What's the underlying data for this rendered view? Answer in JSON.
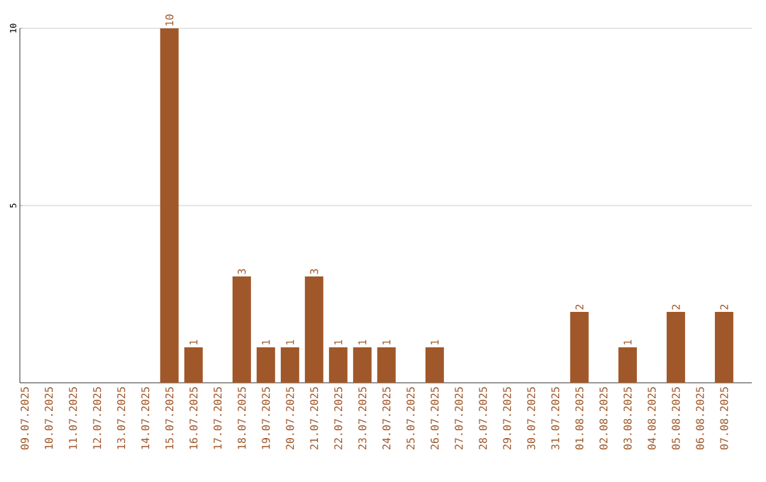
{
  "chart_data": {
    "type": "bar",
    "categories": [
      "09.07.2025",
      "10.07.2025",
      "11.07.2025",
      "12.07.2025",
      "13.07.2025",
      "14.07.2025",
      "15.07.2025",
      "16.07.2025",
      "17.07.2025",
      "18.07.2025",
      "19.07.2025",
      "20.07.2025",
      "21.07.2025",
      "22.07.2025",
      "23.07.2025",
      "24.07.2025",
      "25.07.2025",
      "26.07.2025",
      "27.07.2025",
      "28.07.2025",
      "29.07.2025",
      "30.07.2025",
      "31.07.2025",
      "01.08.2025",
      "02.08.2025",
      "03.08.2025",
      "04.08.2025",
      "05.08.2025",
      "06.08.2025",
      "07.08.2025"
    ],
    "values": [
      0,
      0,
      0,
      0,
      0,
      0,
      10,
      1,
      0,
      3,
      1,
      1,
      3,
      1,
      1,
      1,
      0,
      1,
      0,
      0,
      0,
      0,
      0,
      2,
      0,
      1,
      0,
      2,
      0,
      2
    ],
    "value_labels": [
      null,
      null,
      null,
      null,
      null,
      null,
      "10",
      "1",
      null,
      "3",
      "1",
      "1",
      "3",
      "1",
      "1",
      "1",
      null,
      "1",
      null,
      null,
      null,
      null,
      null,
      "2",
      null,
      "1",
      null,
      "2",
      null,
      "2"
    ],
    "color": "#a0582a",
    "ylim": [
      0,
      10
    ],
    "yticks": [
      5,
      10
    ],
    "grid": "y"
  }
}
